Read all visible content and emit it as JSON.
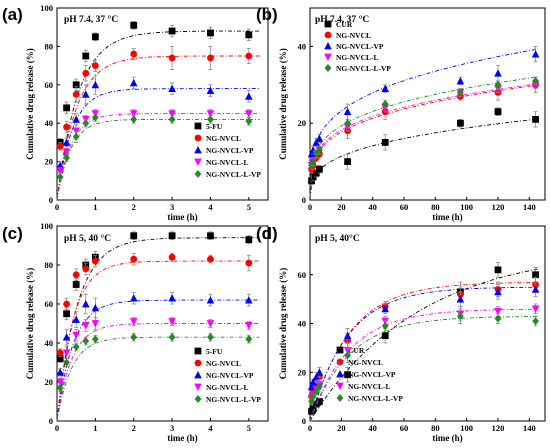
{
  "chart_data": [
    {
      "panel": "(a)",
      "condition": "pH 7.4, 37 °C",
      "type": "scatter",
      "xlabel": "time (h)",
      "ylabel": "Cumulative drug release (%)",
      "xlim": [
        0,
        5.5
      ],
      "ylim": [
        0,
        100
      ],
      "xticks": [
        0,
        1,
        2,
        3,
        4,
        5
      ],
      "yticks": [
        0,
        20,
        40,
        60,
        80,
        100
      ],
      "legend_position": "bottom-right",
      "series": [
        {
          "name": "5-FU",
          "color": "#000000",
          "marker": "square",
          "x": [
            0.083,
            0.25,
            0.5,
            0.75,
            1,
            2,
            3,
            4,
            5
          ],
          "y": [
            30,
            48,
            60,
            75,
            85,
            91,
            88,
            87,
            86
          ],
          "err": [
            2,
            3,
            3,
            3,
            2,
            2,
            3,
            3,
            3
          ],
          "fit_plateau": 88,
          "fit_k": 1.8
        },
        {
          "name": "NG-NVCL",
          "color": "#ff0000",
          "marker": "circle",
          "x": [
            0.083,
            0.25,
            0.5,
            0.75,
            1,
            2,
            3,
            4,
            5
          ],
          "y": [
            28,
            38,
            55,
            66,
            70,
            76,
            74,
            74,
            75
          ],
          "err": [
            2,
            3,
            4,
            4,
            3,
            3,
            6,
            6,
            4
          ],
          "fit_plateau": 75,
          "fit_k": 2.0
        },
        {
          "name": "NG-NVCL-VP",
          "color": "#0000ff",
          "marker": "triangle-up",
          "x": [
            0.083,
            0.25,
            0.5,
            0.75,
            1,
            2,
            3,
            4,
            5
          ],
          "y": [
            18,
            30,
            42,
            55,
            60,
            61,
            58,
            57,
            54
          ],
          "err": [
            2,
            2,
            3,
            5,
            5,
            3,
            3,
            3,
            3
          ],
          "fit_plateau": 58,
          "fit_k": 2.5
        },
        {
          "name": "NG-NVCL-L",
          "color": "#ff00ff",
          "marker": "triangle-down",
          "x": [
            0.083,
            0.25,
            0.5,
            0.75,
            1,
            2,
            3,
            4,
            5
          ],
          "y": [
            15,
            25,
            36,
            42,
            45,
            45,
            45,
            45,
            45
          ],
          "err": [
            2,
            2,
            3,
            2,
            2,
            2,
            2,
            2,
            2
          ],
          "fit_plateau": 45,
          "fit_k": 2.8
        },
        {
          "name": "NG-NVCL-L-VP",
          "color": "#228b22",
          "marker": "diamond",
          "x": [
            0.083,
            0.25,
            0.5,
            0.75,
            1,
            2,
            3,
            4,
            5
          ],
          "y": [
            12,
            22,
            33,
            40,
            43,
            42,
            42,
            42,
            41
          ],
          "err": [
            2,
            2,
            3,
            2,
            2,
            2,
            2,
            2,
            2
          ],
          "fit_plateau": 42,
          "fit_k": 2.8
        }
      ]
    },
    {
      "panel": "(b)",
      "condition": "pH 7.4, 37 °C",
      "type": "scatter",
      "xlabel": "time (h)",
      "ylabel": "Cumulative drug release (%)",
      "xlim": [
        0,
        150
      ],
      "ylim": [
        0,
        50
      ],
      "xticks": [
        0,
        20,
        40,
        60,
        80,
        100,
        120,
        140
      ],
      "yticks": [
        0,
        20,
        40
      ],
      "legend_position": "top-left",
      "series": [
        {
          "name": "CUR",
          "color": "#000000",
          "marker": "square",
          "x": [
            1,
            2,
            4,
            6,
            24,
            48,
            96,
            120,
            144
          ],
          "y": [
            5,
            6,
            7,
            8,
            10,
            15,
            20,
            23,
            21
          ],
          "err": [
            1,
            1,
            1,
            1,
            2,
            2,
            1,
            1,
            2
          ],
          "fit_a": 4.5,
          "fit_b": 0.31
        },
        {
          "name": "NG-NVCL",
          "color": "#ff0000",
          "marker": "circle",
          "x": [
            1,
            2,
            4,
            6,
            24,
            48,
            96,
            120,
            144
          ],
          "y": [
            8,
            9,
            11,
            12,
            18,
            23,
            27,
            28,
            30
          ],
          "err": [
            1,
            1,
            1,
            1,
            2,
            2,
            1,
            2,
            2
          ],
          "fit_a": 8,
          "fit_b": 0.265
        },
        {
          "name": "NG-NVCL-VP",
          "color": "#0000ff",
          "marker": "triangle-up",
          "x": [
            1,
            2,
            4,
            6,
            24,
            48,
            96,
            120,
            144
          ],
          "y": [
            12,
            13,
            15,
            16,
            23,
            29,
            31,
            33,
            38
          ],
          "err": [
            1,
            1,
            1,
            1,
            2,
            1,
            1,
            2,
            2
          ],
          "fit_a": 10.5,
          "fit_b": 0.265
        },
        {
          "name": "NG-NVCL-L",
          "color": "#ff00ff",
          "marker": "triangle-down",
          "x": [
            1,
            2,
            4,
            6,
            24,
            48,
            96,
            120,
            144
          ],
          "y": [
            9,
            10,
            12,
            13,
            19,
            24,
            28,
            29,
            30
          ],
          "err": [
            1,
            1,
            1,
            1,
            1,
            1,
            1,
            1,
            1
          ],
          "fit_a": 8.5,
          "fit_b": 0.255
        },
        {
          "name": "NG-NVCL-L-VP",
          "color": "#228b22",
          "marker": "diamond",
          "x": [
            1,
            2,
            4,
            6,
            24,
            48,
            96,
            120,
            144
          ],
          "y": [
            9,
            10,
            12,
            13,
            20,
            25,
            28,
            30,
            31
          ],
          "err": [
            1,
            1,
            1,
            1,
            1,
            1,
            1,
            1,
            1
          ],
          "fit_a": 9,
          "fit_b": 0.255
        }
      ]
    },
    {
      "panel": "(c)",
      "condition": "pH 5, 40 °C",
      "type": "scatter",
      "xlabel": "time (h)",
      "ylabel": "Cumulative drug release (%)",
      "xlim": [
        0,
        5.5
      ],
      "ylim": [
        0,
        100
      ],
      "xticks": [
        0,
        1,
        2,
        3,
        4,
        5
      ],
      "yticks": [
        0,
        20,
        40,
        60,
        80,
        100
      ],
      "legend_position": "bottom-right",
      "series": [
        {
          "name": "5-FU",
          "color": "#000000",
          "marker": "square",
          "x": [
            0.083,
            0.25,
            0.5,
            0.75,
            1,
            2,
            3,
            4,
            5
          ],
          "y": [
            32,
            55,
            70,
            80,
            84,
            95,
            95,
            95,
            93
          ],
          "err": [
            2,
            3,
            3,
            3,
            3,
            2,
            2,
            2,
            2
          ],
          "fit_plateau": 94,
          "fit_k": 1.9
        },
        {
          "name": "NG-NVCL",
          "color": "#ff0000",
          "marker": "circle",
          "x": [
            0.083,
            0.25,
            0.5,
            0.75,
            1,
            2,
            3,
            4,
            5
          ],
          "y": [
            35,
            60,
            75,
            78,
            82,
            83,
            84,
            83,
            81
          ],
          "err": [
            2,
            3,
            3,
            3,
            3,
            3,
            2,
            2,
            4
          ],
          "fit_plateau": 82,
          "fit_k": 2.4
        },
        {
          "name": "NG-NVCL-VP",
          "color": "#0000ff",
          "marker": "triangle-up",
          "x": [
            0.083,
            0.25,
            0.5,
            0.75,
            1,
            2,
            3,
            4,
            5
          ],
          "y": [
            25,
            43,
            52,
            60,
            58,
            63,
            63,
            62,
            62
          ],
          "err": [
            2,
            4,
            4,
            5,
            5,
            3,
            3,
            3,
            3
          ],
          "fit_plateau": 62,
          "fit_k": 2.4
        },
        {
          "name": "NG-NVCL-L",
          "color": "#ff00ff",
          "marker": "triangle-down",
          "x": [
            0.083,
            0.25,
            0.5,
            0.75,
            1,
            2,
            3,
            4,
            5
          ],
          "y": [
            20,
            35,
            44,
            49,
            50,
            51,
            51,
            50,
            49
          ],
          "err": [
            2,
            3,
            3,
            3,
            3,
            2,
            2,
            2,
            2
          ],
          "fit_plateau": 50,
          "fit_k": 2.6
        },
        {
          "name": "NG-NVCL-L-VP",
          "color": "#228b22",
          "marker": "diamond",
          "x": [
            0.083,
            0.25,
            0.5,
            0.75,
            1,
            2,
            3,
            4,
            5
          ],
          "y": [
            17,
            30,
            38,
            41,
            42,
            43,
            43,
            43,
            42
          ],
          "err": [
            2,
            2,
            2,
            2,
            2,
            2,
            2,
            2,
            2
          ],
          "fit_plateau": 43,
          "fit_k": 2.6
        }
      ]
    },
    {
      "panel": "(d)",
      "condition": "pH 5, 40°C",
      "type": "scatter",
      "xlabel": "time (h)",
      "ylabel": "Cumulative drug release (%)",
      "xlim": [
        0,
        150
      ],
      "ylim": [
        0,
        80
      ],
      "xticks": [
        0,
        20,
        40,
        60,
        80,
        100,
        120,
        140
      ],
      "yticks": [
        0,
        20,
        40,
        60
      ],
      "legend_position": "bottom-right",
      "series": [
        {
          "name": "CUR",
          "color": "#000000",
          "marker": "square",
          "x": [
            1,
            2,
            4,
            6,
            24,
            48,
            96,
            120,
            144
          ],
          "y": [
            4,
            5,
            7,
            8,
            19,
            35,
            53,
            62,
            60
          ],
          "err": [
            1,
            1,
            1,
            1,
            3,
            3,
            4,
            3,
            3
          ],
          "fit_plateau": 71,
          "fit_k": 0.0145
        },
        {
          "name": "NG-NVCL",
          "color": "#ff0000",
          "marker": "circle",
          "x": [
            1,
            2,
            4,
            6,
            24,
            48,
            96,
            120,
            144
          ],
          "y": [
            10,
            12,
            14,
            18,
            33,
            47,
            52,
            54,
            56
          ],
          "err": [
            1,
            1,
            2,
            2,
            3,
            2,
            3,
            3,
            3
          ],
          "fit_plateau": 57,
          "fit_k": 0.04
        },
        {
          "name": "NG-NVCL-VP",
          "color": "#0000ff",
          "marker": "triangle-up",
          "x": [
            1,
            2,
            4,
            6,
            24,
            48,
            96,
            120,
            144
          ],
          "y": [
            14,
            16,
            18,
            20,
            35,
            46,
            50,
            53,
            54
          ],
          "err": [
            1,
            1,
            2,
            2,
            3,
            2,
            3,
            3,
            3
          ],
          "fit_plateau": 55,
          "fit_k": 0.042
        },
        {
          "name": "NG-NVCL-L",
          "color": "#ff00ff",
          "marker": "triangle-down",
          "x": [
            1,
            2,
            4,
            6,
            24,
            48,
            96,
            120,
            144
          ],
          "y": [
            9,
            11,
            13,
            15,
            29,
            41,
            44,
            45,
            46
          ],
          "err": [
            1,
            1,
            1,
            2,
            3,
            2,
            3,
            2,
            2
          ],
          "fit_plateau": 46,
          "fit_k": 0.04
        },
        {
          "name": "NG-NVCL-L-VP",
          "color": "#228b22",
          "marker": "diamond",
          "x": [
            1,
            2,
            4,
            6,
            24,
            48,
            96,
            120,
            144
          ],
          "y": [
            8,
            10,
            12,
            14,
            27,
            39,
            43,
            42,
            41
          ],
          "err": [
            1,
            1,
            1,
            2,
            3,
            2,
            3,
            2,
            2
          ],
          "fit_plateau": 43,
          "fit_k": 0.04
        }
      ]
    }
  ]
}
